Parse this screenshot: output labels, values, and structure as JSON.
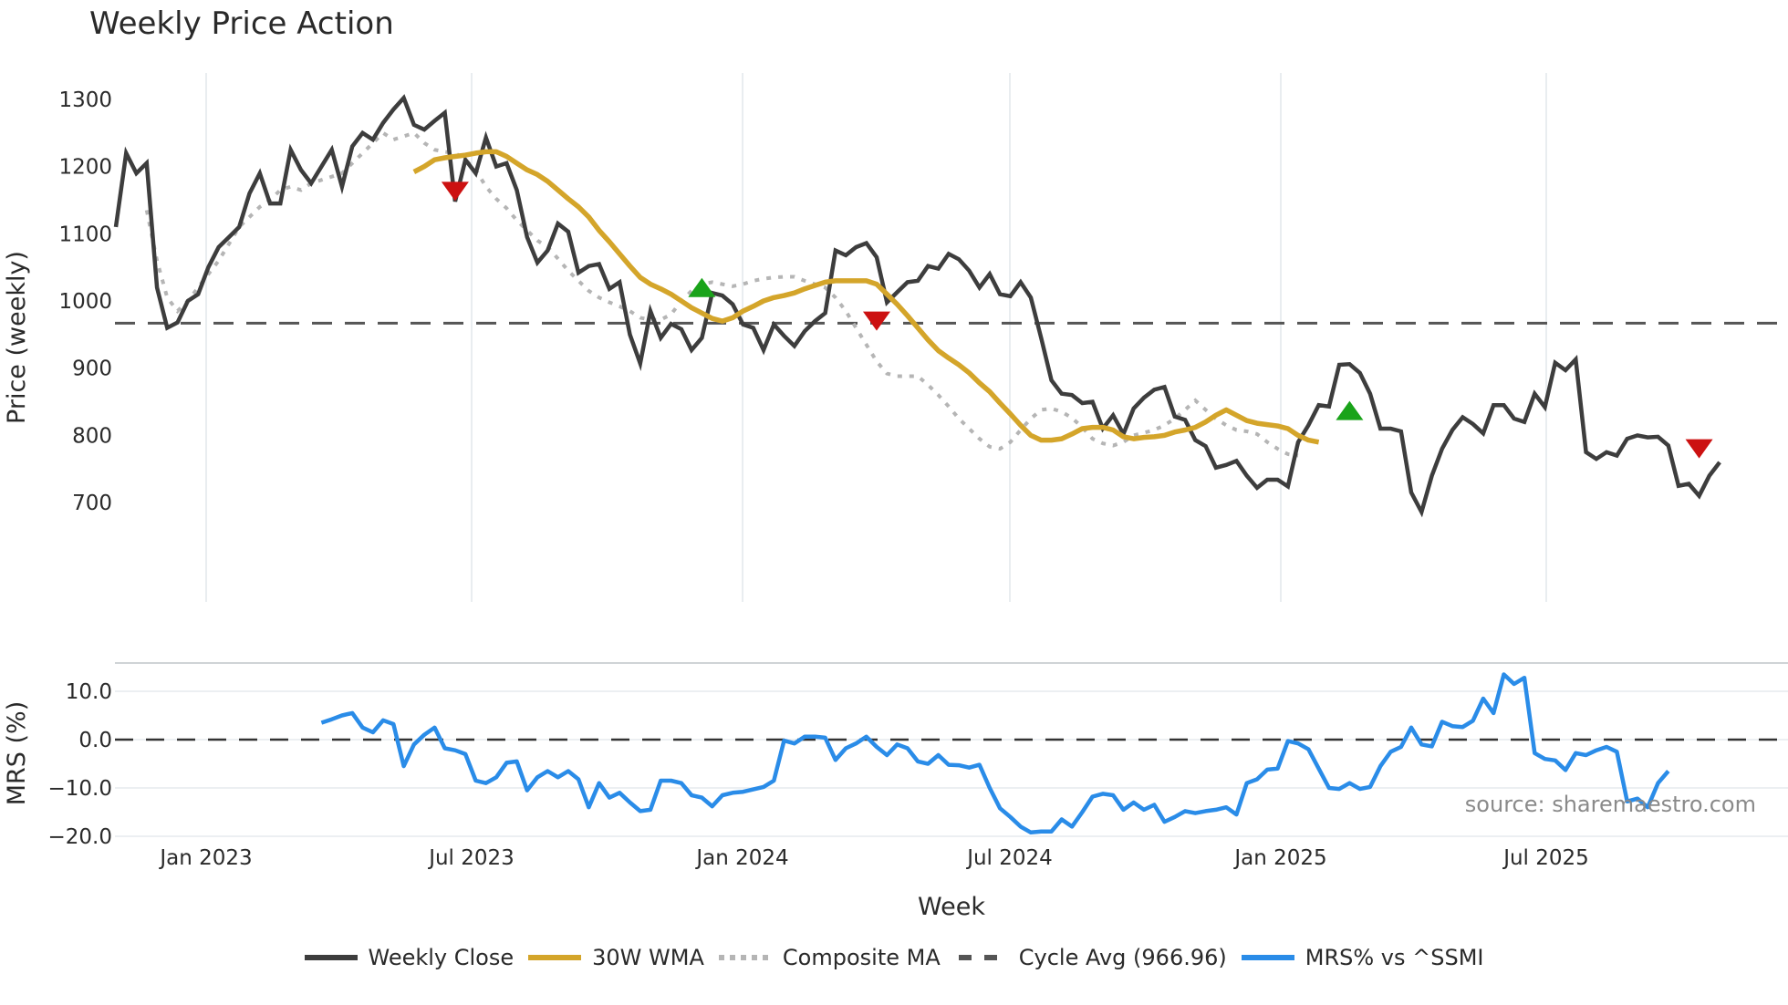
{
  "title": "Weekly Price Action",
  "source": "source: sharemaestro.com",
  "xlabel": "Week",
  "price_panel": {
    "ylabel": "Price (weekly)",
    "yticks": [
      1300,
      1200,
      1100,
      1000,
      900,
      800,
      700
    ]
  },
  "mrs_panel": {
    "ylabel": "MRS (%)",
    "yticks": [
      "10.0",
      "0.0",
      "−10.0",
      "−20.0"
    ]
  },
  "xticks": [
    "Jan 2023",
    "Jul 2023",
    "Jan 2024",
    "Jul 2024",
    "Jan 2025",
    "Jul 2025"
  ],
  "legend": [
    {
      "label": "Weekly Close",
      "color": "#3d3d3d",
      "style": "solid"
    },
    {
      "label": "30W WMA",
      "color": "#d4a52a",
      "style": "solid"
    },
    {
      "label": "Composite MA",
      "color": "#b5b5b5",
      "style": "dotted"
    },
    {
      "label": "Cycle Avg (966.96)",
      "color": "#555555",
      "style": "dashed"
    },
    {
      "label": "MRS% vs ^SSMI",
      "color": "#2a8ce8",
      "style": "solid"
    }
  ],
  "colors": {
    "close": "#3d3d3d",
    "wma": "#d4a52a",
    "composite": "#b5b5b5",
    "cycle": "#555555",
    "mrs": "#2a8ce8",
    "buy": "#1aa31a",
    "sell": "#cc1111",
    "grid": "#e9edf0"
  },
  "chart_data": [
    {
      "type": "line",
      "title": "Weekly Price Action",
      "xlabel": "Week",
      "ylabel": "Price (weekly)",
      "ylim": [
        650,
        1340
      ],
      "xticks": [
        "Jan 2023",
        "Jul 2023",
        "Jan 2024",
        "Jul 2024",
        "Jan 2025",
        "Jul 2025"
      ],
      "cycle_avg": 966.96,
      "series": [
        {
          "name": "Weekly Close",
          "start_index": 0,
          "values": [
            1110,
            1220,
            1190,
            1205,
            1020,
            960,
            968,
            1000,
            1010,
            1050,
            1080,
            1095,
            1110,
            1160,
            1190,
            1145,
            1145,
            1225,
            1195,
            1175,
            1200,
            1225,
            1170,
            1230,
            1250,
            1240,
            1265,
            1285,
            1302,
            1262,
            1255,
            1268,
            1280,
            1148,
            1210,
            1190,
            1243,
            1200,
            1205,
            1165,
            1095,
            1057,
            1075,
            1115,
            1103,
            1042,
            1052,
            1055,
            1018,
            1028,
            950,
            907,
            985,
            945,
            966,
            958,
            927,
            945,
            1012,
            1008,
            995,
            965,
            960,
            927,
            965,
            948,
            933,
            955,
            970,
            982,
            1075,
            1068,
            1080,
            1086,
            1065,
            998,
            1013,
            1028,
            1030,
            1052,
            1048,
            1070,
            1062,
            1045,
            1020,
            1040,
            1010,
            1007,
            1028,
            1005,
            945,
            882,
            862,
            860,
            848,
            850,
            810,
            830,
            802,
            840,
            856,
            868,
            872,
            828,
            823,
            793,
            784,
            752,
            756,
            762,
            740,
            722,
            734,
            734,
            724,
            790,
            815,
            845,
            843,
            905,
            906,
            893,
            862,
            810,
            810,
            806,
            715,
            686,
            740,
            780,
            808,
            827,
            817,
            803,
            845,
            845,
            825,
            820,
            862,
            842,
            908,
            897,
            913,
            775,
            765,
            775,
            770,
            795,
            800,
            797,
            798,
            785,
            725,
            728,
            710,
            740,
            760
          ]
        },
        {
          "name": "30W WMA",
          "start_index": 29,
          "values": [
            1192,
            1200,
            1210,
            1213,
            1215,
            1217,
            1220,
            1222,
            1222,
            1215,
            1205,
            1195,
            1188,
            1178,
            1165,
            1152,
            1140,
            1125,
            1105,
            1088,
            1070,
            1052,
            1035,
            1025,
            1018,
            1010,
            1000,
            990,
            982,
            974,
            970,
            975,
            985,
            992,
            1000,
            1005,
            1008,
            1012,
            1018,
            1023,
            1028,
            1030,
            1030,
            1030,
            1030,
            1025,
            1010,
            995,
            978,
            960,
            942,
            926,
            915,
            905,
            893,
            878,
            865,
            848,
            832,
            815,
            800,
            793,
            793,
            795,
            802,
            810,
            812,
            812,
            808,
            798,
            795,
            797,
            798,
            800,
            805,
            808,
            812,
            820,
            830,
            838,
            830,
            822,
            818,
            816,
            814,
            810,
            800,
            793,
            790
          ]
        },
        {
          "name": "Composite MA",
          "start_index": 3,
          "values": [
            1135,
            1060,
            1005,
            985,
            1000,
            1020,
            1040,
            1060,
            1085,
            1110,
            1125,
            1140,
            1150,
            1165,
            1170,
            1165,
            1175,
            1180,
            1185,
            1190,
            1205,
            1220,
            1235,
            1250,
            1240,
            1245,
            1250,
            1235,
            1225,
            1222,
            1220,
            1210,
            1195,
            1170,
            1152,
            1138,
            1120,
            1105,
            1090,
            1080,
            1063,
            1045,
            1030,
            1015,
            1005,
            998,
            992,
            985,
            975,
            972,
            972,
            980,
            1000,
            1015,
            1025,
            1028,
            1025,
            1022,
            1025,
            1030,
            1033,
            1035,
            1036,
            1036,
            1030,
            1025,
            1020,
            1005,
            985,
            960,
            935,
            910,
            892,
            888,
            888,
            888,
            875,
            860,
            843,
            825,
            810,
            795,
            783,
            780,
            790,
            808,
            825,
            838,
            840,
            835,
            826,
            812,
            795,
            788,
            785,
            790,
            800,
            804,
            808,
            815,
            825,
            838,
            852,
            838,
            825,
            815,
            808,
            806,
            802,
            790,
            780,
            772,
            770
          ]
        }
      ],
      "markers": [
        {
          "type": "sell",
          "index": 33,
          "value": 1165
        },
        {
          "type": "buy",
          "index": 57,
          "value": 1018
        },
        {
          "type": "sell",
          "index": 74,
          "value": 972
        },
        {
          "type": "buy",
          "index": 120,
          "value": 835
        },
        {
          "type": "sell",
          "index": 154,
          "value": 782
        }
      ]
    },
    {
      "type": "line",
      "ylabel": "MRS (%)",
      "ylim": [
        -22,
        16
      ],
      "series": [
        {
          "name": "MRS% vs ^SSMI",
          "start_index": 20,
          "values": [
            3.5,
            4.2,
            5.0,
            5.5,
            2.5,
            1.5,
            4.0,
            3.2,
            -5.5,
            -1.0,
            1.0,
            2.5,
            -1.8,
            -2.2,
            -3.0,
            -8.5,
            -9.0,
            -7.8,
            -4.8,
            -4.5,
            -10.5,
            -7.8,
            -6.5,
            -7.8,
            -6.5,
            -8.2,
            -14.0,
            -9.0,
            -12.0,
            -11.0,
            -13.0,
            -14.8,
            -14.5,
            -8.5,
            -8.5,
            -9.0,
            -11.5,
            -12.0,
            -13.8,
            -11.5,
            -11.0,
            -10.8,
            -10.3,
            -9.8,
            -8.5,
            -0.2,
            -0.8,
            0.6,
            0.6,
            0.4,
            -4.2,
            -1.8,
            -0.8,
            0.6,
            -1.5,
            -3.2,
            -1.0,
            -1.8,
            -4.5,
            -5.0,
            -3.2,
            -5.2,
            -5.3,
            -5.8,
            -5.2,
            -10.0,
            -14.2,
            -16.0,
            -18.0,
            -19.2,
            -19.0,
            -19.0,
            -16.5,
            -18.0,
            -15.0,
            -11.8,
            -11.2,
            -11.5,
            -14.5,
            -13.0,
            -14.5,
            -13.5,
            -17.0,
            -16.0,
            -14.8,
            -15.2,
            -14.8,
            -14.5,
            -14.0,
            -15.5,
            -9.0,
            -8.2,
            -6.2,
            -6.0,
            -0.3,
            -0.8,
            -2.0,
            -6.0,
            -10.0,
            -10.2,
            -9.0,
            -10.2,
            -9.8,
            -5.5,
            -2.5,
            -1.5,
            2.5,
            -1.0,
            -1.4,
            3.7,
            2.8,
            2.6,
            3.9,
            8.5,
            5.5,
            13.5,
            11.5,
            12.8,
            -2.8,
            -4.0,
            -4.3,
            -6.3,
            -2.8,
            -3.2,
            -2.2,
            -1.5,
            -2.5,
            -12.8,
            -12.2,
            -14.0,
            -9.0,
            -6.5
          ]
        }
      ],
      "zero_line": 0
    }
  ]
}
